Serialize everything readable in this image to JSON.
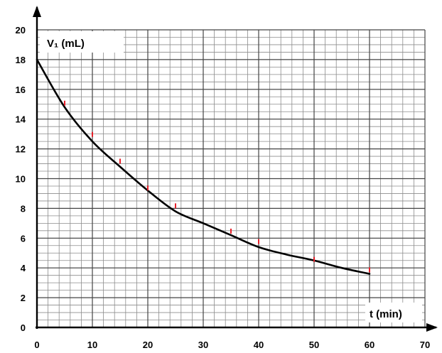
{
  "chart_data": {
    "type": "line",
    "xlabel": "t (min)",
    "ylabel": "V₁ (mL)",
    "xlim": [
      0,
      70
    ],
    "ylim": [
      0,
      20
    ],
    "x_ticks": [
      0,
      10,
      20,
      30,
      40,
      50,
      60,
      70
    ],
    "y_ticks": [
      0,
      2,
      4,
      6,
      8,
      10,
      12,
      14,
      16,
      18,
      20
    ],
    "minor_grid_step_x": 2,
    "minor_grid_step_y": 0.5,
    "grid": true,
    "curve": {
      "x": [
        0,
        5,
        10,
        15,
        20,
        25,
        30,
        35,
        40,
        45,
        50,
        55,
        60
      ],
      "y": [
        18,
        14.8,
        12.5,
        10.8,
        9.2,
        7.8,
        7.0,
        6.2,
        5.4,
        4.9,
        4.5,
        4.0,
        3.6
      ],
      "color": "#000000"
    },
    "points": {
      "x": [
        5,
        10,
        15,
        20,
        25,
        35,
        40,
        50,
        60
      ],
      "y": [
        15.0,
        12.9,
        11.1,
        9.3,
        8.1,
        6.4,
        5.7,
        4.5,
        3.8
      ],
      "color": "#e8202a"
    }
  }
}
